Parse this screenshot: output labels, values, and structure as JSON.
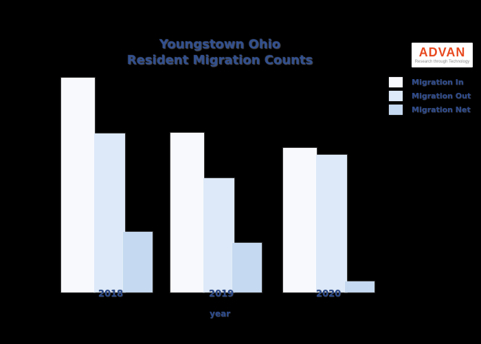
{
  "title": {
    "line1": "Youngstown Ohio",
    "line2": "Resident Migration Counts"
  },
  "logo": {
    "name": "ADVAN",
    "tagline": "Research through Technology",
    "brand_color": "#e8491f"
  },
  "colors": {
    "background": "#000000",
    "text": "#2d4b8d",
    "migration_in": "#f8f9fd",
    "migration_out": "#dde9f8",
    "migration_net": "#c5d9f0"
  },
  "chart_data": {
    "type": "bar",
    "title": "Youngstown Ohio Resident Migration Counts",
    "categories": [
      "2018",
      "2019",
      "2020"
    ],
    "series": [
      {
        "name": "Migration In",
        "color": "#f8f9fd",
        "values": [
          312,
          232,
          210
        ]
      },
      {
        "name": "Migration Out",
        "color": "#dde9f8",
        "values": [
          231,
          166,
          200
        ]
      },
      {
        "name": "Migration Net",
        "color": "#c5d9f0",
        "values": [
          88,
          72,
          16
        ]
      }
    ],
    "xlabel": "year",
    "ylabel": "",
    "y_axis_labeled": false,
    "ylim": [
      0,
      330
    ],
    "grid": false,
    "legend_position": "upper right",
    "values_are_relative_pixel_estimates": true
  }
}
